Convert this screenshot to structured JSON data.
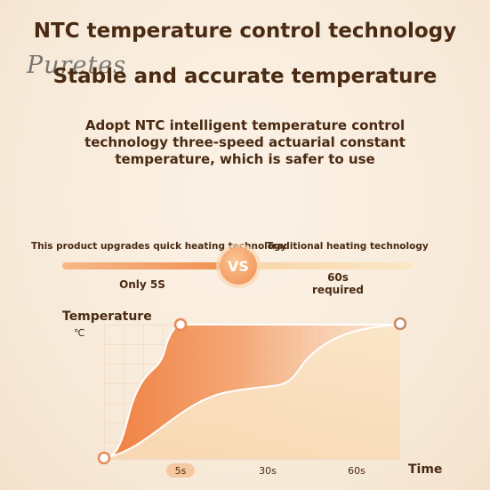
{
  "header": {
    "title": "NTC temperature control technology",
    "subtitle": "Stable and accurate temperature",
    "logo": "Puretes"
  },
  "description": "Adopt NTC intelligent temperature control technology three-speed actuarial constant temperature, which is safer to use",
  "comparison": {
    "left_label": "This product upgrades quick heating technology",
    "right_label": "Traditional heating technology",
    "vs": "VS",
    "fast_time": "Only 5S",
    "slow_time_line1": "60s",
    "slow_time_line2": "required"
  },
  "chart": {
    "ylabel": "Temperature",
    "yunit": "℃",
    "xlabel": "Time",
    "ticks": [
      "5s",
      "30s",
      "60s"
    ]
  },
  "colors": {
    "accent": "#f08c4e",
    "text": "#4a2a12",
    "fast_fill": "#f28a4c",
    "slow_fill": "#f9dfbe"
  }
}
